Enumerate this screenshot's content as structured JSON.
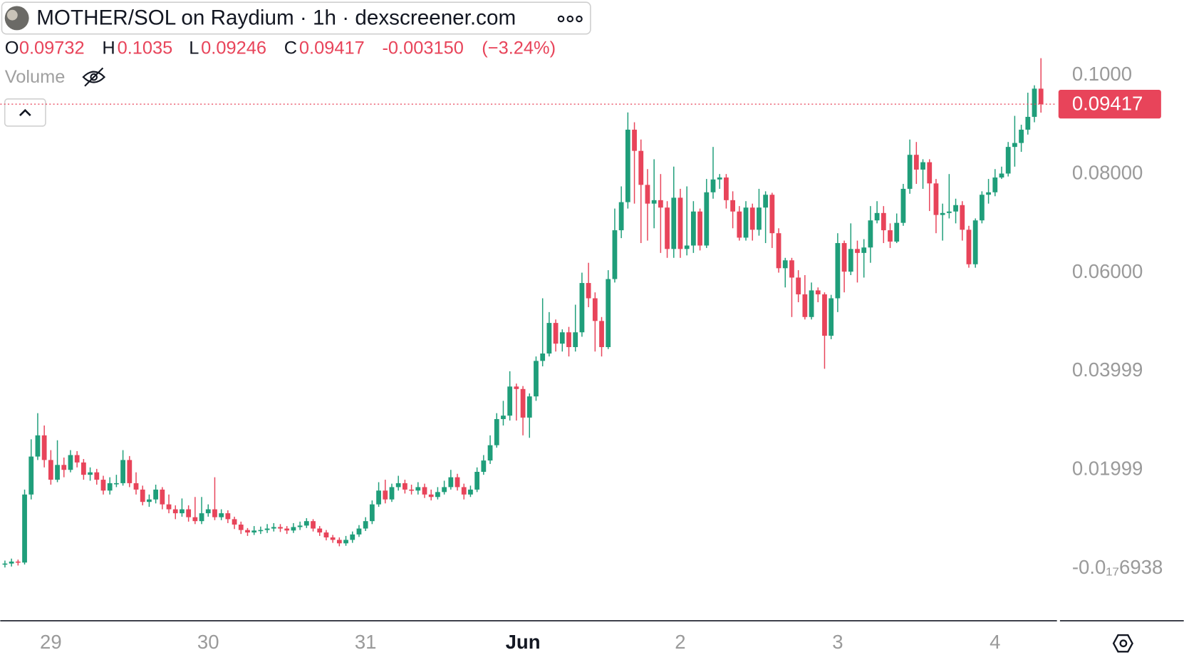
{
  "chart_data": {
    "type": "candlestick",
    "title": "MOTHER/SOL on Raydium · 1h · dexscreener.com",
    "ohlc_legend": {
      "o": "O",
      "h": "H",
      "l": "L",
      "c": "C",
      "change": "-0.003150",
      "change_pct": "(−3.24%)"
    },
    "indicator": "Volume",
    "up_color": "#1f9e7a",
    "down_color": "#e8445a",
    "price_line": true,
    "ylim": [
      -0.0106,
      0.1153
    ],
    "yticks": [
      {
        "value": 0.1,
        "label": "0.1000"
      },
      {
        "value": 0.08,
        "label": "0.08000"
      },
      {
        "value": 0.06,
        "label": "0.06000"
      },
      0.03999,
      0.01999,
      {
        "value": -6.938e-18,
        "label": "-0.0₁₇6938"
      }
    ],
    "categories": [
      null,
      null,
      null,
      null,
      null,
      null,
      null,
      "29",
      null,
      null,
      null,
      null,
      null,
      null,
      null,
      null,
      null,
      null,
      null,
      null,
      null,
      null,
      null,
      null,
      null,
      null,
      null,
      null,
      null,
      null,
      null,
      "30",
      null,
      null,
      null,
      null,
      null,
      null,
      null,
      null,
      null,
      null,
      null,
      null,
      null,
      null,
      null,
      null,
      null,
      null,
      null,
      null,
      null,
      null,
      null,
      "31",
      null,
      null,
      null,
      null,
      null,
      null,
      null,
      null,
      null,
      null,
      null,
      null,
      null,
      null,
      null,
      null,
      null,
      null,
      null,
      null,
      null,
      null,
      null,
      "Jun",
      null,
      null,
      null,
      null,
      null,
      null,
      null,
      null,
      null,
      null,
      null,
      null,
      null,
      null,
      null,
      null,
      null,
      null,
      null,
      null,
      null,
      null,
      null,
      "2",
      null,
      null,
      null,
      null,
      null,
      null,
      null,
      null,
      null,
      null,
      null,
      null,
      null,
      null,
      null,
      null,
      null,
      null,
      null,
      null,
      null,
      null,
      null,
      "3",
      null,
      null,
      null,
      null,
      null,
      null,
      null,
      null,
      null,
      null,
      null,
      null,
      null,
      null,
      null,
      null,
      null,
      null,
      null,
      null,
      null,
      null,
      null,
      "4",
      null,
      null,
      null,
      null,
      null,
      null,
      null
    ],
    "open": [
      0.0008,
      0.001,
      0.0014,
      0.0012,
      0.015,
      0.0227,
      0.027,
      0.022,
      0.018,
      0.021,
      0.02,
      0.023,
      0.0215,
      0.019,
      0.0195,
      0.018,
      0.0158,
      0.0173,
      0.0173,
      0.022,
      0.0173,
      0.016,
      0.0135,
      0.014,
      0.016,
      0.013,
      0.012,
      0.0112,
      0.012,
      0.0104,
      0.0096,
      0.0112,
      0.012,
      0.0104,
      0.0112,
      0.01,
      0.0089,
      0.0078,
      0.0073,
      0.0077,
      0.0078,
      0.0081,
      0.0084,
      0.0081,
      0.0077,
      0.0084,
      0.0087,
      0.0096,
      0.0081,
      0.0073,
      0.0063,
      0.0058,
      0.0051,
      0.0058,
      0.0069,
      0.0081,
      0.0096,
      0.013,
      0.0158,
      0.014,
      0.0165,
      0.0173,
      0.016,
      0.0158,
      0.0165,
      0.015,
      0.0145,
      0.0155,
      0.0165,
      0.0185,
      0.0165,
      0.015,
      0.016,
      0.0196,
      0.0219,
      0.025,
      0.0303,
      0.031,
      0.0369,
      0.0364,
      0.0306,
      0.0349,
      0.0421,
      0.0436,
      0.0498,
      0.0456,
      0.0479,
      0.0449,
      0.0479,
      0.0579,
      0.0548,
      0.0502,
      0.0449,
      0.0587,
      0.0686,
      0.0743,
      0.089,
      0.0847,
      0.0778,
      0.074,
      0.0747,
      0.0732,
      0.0648,
      0.0752,
      0.0648,
      0.0655,
      0.0724,
      0.0655,
      0.0763,
      0.0789,
      0.0793,
      0.0747,
      0.0724,
      0.0671,
      0.0732,
      0.0687,
      0.0732,
      0.0758,
      0.068,
      0.0609,
      0.0625,
      0.059,
      0.0556,
      0.051,
      0.0564,
      0.0556,
      0.0472,
      0.0548,
      0.066,
      0.0602,
      0.0648,
      0.064,
      0.0651,
      0.0706,
      0.0721,
      0.0686,
      0.0663,
      0.0701,
      0.077,
      0.0839,
      0.0809,
      0.0824,
      0.0781,
      0.0717,
      0.0721,
      0.0724,
      0.0737,
      0.0687,
      0.0617,
      0.0706,
      0.0758,
      0.0763,
      0.0793,
      0.0801,
      0.0855,
      0.0863,
      0.089,
      0.0916,
      0.09732
    ],
    "high": [
      0.0016,
      0.002,
      0.0018,
      0.016,
      0.0262,
      0.0315,
      0.029,
      0.024,
      0.026,
      0.0225,
      0.024,
      0.0238,
      0.0222,
      0.0205,
      0.0202,
      0.0188,
      0.0185,
      0.019,
      0.024,
      0.0228,
      0.0195,
      0.0168,
      0.015,
      0.017,
      0.0165,
      0.015,
      0.0128,
      0.0142,
      0.0128,
      0.0145,
      0.0145,
      0.013,
      0.0185,
      0.012,
      0.0118,
      0.0105,
      0.0095,
      0.0082,
      0.0086,
      0.0085,
      0.009,
      0.0092,
      0.009,
      0.0086,
      0.0092,
      0.0095,
      0.0102,
      0.01,
      0.0086,
      0.0078,
      0.0068,
      0.0063,
      0.0066,
      0.0075,
      0.0088,
      0.0104,
      0.0138,
      0.0175,
      0.018,
      0.0172,
      0.0188,
      0.018,
      0.017,
      0.0175,
      0.0172,
      0.016,
      0.0165,
      0.0178,
      0.02,
      0.0192,
      0.0172,
      0.0168,
      0.0205,
      0.023,
      0.027,
      0.0315,
      0.034,
      0.04,
      0.0375,
      0.037,
      0.0355,
      0.043,
      0.0548,
      0.052,
      0.0505,
      0.0485,
      0.049,
      0.0535,
      0.06,
      0.062,
      0.056,
      0.051,
      0.0605,
      0.073,
      0.0775,
      0.0925,
      0.0905,
      0.087,
      0.081,
      0.083,
      0.08,
      0.0745,
      0.0815,
      0.077,
      0.0775,
      0.0745,
      0.073,
      0.079,
      0.0855,
      0.08,
      0.08,
      0.0765,
      0.0735,
      0.0745,
      0.074,
      0.077,
      0.0765,
      0.0762,
      0.069,
      0.063,
      0.063,
      0.0605,
      0.0595,
      0.058,
      0.057,
      0.056,
      0.0555,
      0.068,
      0.0665,
      0.07,
      0.0665,
      0.0668,
      0.0735,
      0.0745,
      0.0735,
      0.07,
      0.072,
      0.078,
      0.087,
      0.0865,
      0.083,
      0.083,
      0.079,
      0.074,
      0.08,
      0.075,
      0.0745,
      0.0695,
      0.071,
      0.0765,
      0.079,
      0.081,
      0.0815,
      0.0865,
      0.0918,
      0.09,
      0.0965,
      0.098,
      0.1035
    ],
    "low": [
      0.0002,
      0.0004,
      0.0006,
      0.0008,
      0.014,
      0.022,
      0.0205,
      0.017,
      0.0175,
      0.0185,
      0.0195,
      0.0205,
      0.018,
      0.0178,
      0.017,
      0.015,
      0.015,
      0.0165,
      0.0168,
      0.0165,
      0.015,
      0.0128,
      0.0125,
      0.0132,
      0.012,
      0.0112,
      0.01,
      0.0105,
      0.0095,
      0.009,
      0.009,
      0.0105,
      0.0098,
      0.0098,
      0.0092,
      0.008,
      0.007,
      0.0066,
      0.0068,
      0.007,
      0.0072,
      0.0075,
      0.0074,
      0.007,
      0.0072,
      0.0078,
      0.0082,
      0.0075,
      0.0066,
      0.0057,
      0.0052,
      0.0045,
      0.0046,
      0.0052,
      0.0064,
      0.0076,
      0.009,
      0.0125,
      0.0132,
      0.0135,
      0.0158,
      0.0152,
      0.015,
      0.015,
      0.0143,
      0.0138,
      0.014,
      0.015,
      0.016,
      0.0158,
      0.014,
      0.0145,
      0.0155,
      0.019,
      0.0212,
      0.0245,
      0.029,
      0.03,
      0.03,
      0.027,
      0.0265,
      0.034,
      0.041,
      0.043,
      0.044,
      0.044,
      0.043,
      0.044,
      0.047,
      0.053,
      0.044,
      0.043,
      0.0445,
      0.058,
      0.067,
      0.073,
      0.074,
      0.066,
      0.0665,
      0.069,
      0.064,
      0.063,
      0.063,
      0.063,
      0.0635,
      0.064,
      0.0645,
      0.065,
      0.075,
      0.077,
      0.073,
      0.069,
      0.0665,
      0.0665,
      0.0665,
      0.0675,
      0.066,
      0.065,
      0.06,
      0.057,
      0.051,
      0.054,
      0.0505,
      0.0505,
      0.054,
      0.0405,
      0.0465,
      0.052,
      0.056,
      0.0595,
      0.058,
      0.059,
      0.062,
      0.07,
      0.066,
      0.065,
      0.066,
      0.0695,
      0.076,
      0.078,
      0.077,
      0.0725,
      0.068,
      0.0665,
      0.071,
      0.07,
      0.0665,
      0.061,
      0.061,
      0.07,
      0.074,
      0.0755,
      0.079,
      0.0795,
      0.0815,
      0.0845,
      0.088,
      0.0905,
      0.09246
    ],
    "close": [
      0.001,
      0.0014,
      0.0012,
      0.015,
      0.0227,
      0.027,
      0.022,
      0.018,
      0.021,
      0.02,
      0.023,
      0.0215,
      0.019,
      0.0195,
      0.018,
      0.0158,
      0.0173,
      0.0173,
      0.022,
      0.0173,
      0.016,
      0.0135,
      0.014,
      0.016,
      0.013,
      0.012,
      0.0112,
      0.012,
      0.0104,
      0.0096,
      0.0112,
      0.012,
      0.0104,
      0.0112,
      0.01,
      0.0089,
      0.0078,
      0.0073,
      0.0077,
      0.0078,
      0.0081,
      0.0084,
      0.0081,
      0.0077,
      0.0084,
      0.0087,
      0.0096,
      0.0081,
      0.0073,
      0.0063,
      0.0058,
      0.0051,
      0.0058,
      0.0069,
      0.0081,
      0.0096,
      0.013,
      0.0158,
      0.014,
      0.0165,
      0.0173,
      0.016,
      0.0158,
      0.0165,
      0.015,
      0.0145,
      0.0155,
      0.0165,
      0.0185,
      0.0165,
      0.015,
      0.016,
      0.0196,
      0.0219,
      0.025,
      0.0303,
      0.031,
      0.0369,
      0.0364,
      0.0306,
      0.0349,
      0.0421,
      0.0436,
      0.0498,
      0.0456,
      0.0479,
      0.0449,
      0.0479,
      0.0579,
      0.0548,
      0.0502,
      0.0449,
      0.0587,
      0.0686,
      0.0743,
      0.089,
      0.0847,
      0.0778,
      0.074,
      0.0747,
      0.0732,
      0.0648,
      0.0752,
      0.0648,
      0.0655,
      0.0724,
      0.0655,
      0.0763,
      0.0789,
      0.0793,
      0.0747,
      0.0724,
      0.0671,
      0.0732,
      0.0687,
      0.0732,
      0.0758,
      0.068,
      0.0609,
      0.0625,
      0.059,
      0.0556,
      0.051,
      0.0564,
      0.0556,
      0.0472,
      0.0548,
      0.066,
      0.0602,
      0.0648,
      0.064,
      0.0651,
      0.0706,
      0.0721,
      0.0686,
      0.0663,
      0.0701,
      0.077,
      0.0839,
      0.0809,
      0.0824,
      0.0781,
      0.0717,
      0.0721,
      0.0724,
      0.0737,
      0.0687,
      0.0617,
      0.0706,
      0.0758,
      0.0763,
      0.0793,
      0.0801,
      0.0855,
      0.0863,
      0.089,
      0.0916,
      0.09732,
      0.09417
    ]
  }
}
